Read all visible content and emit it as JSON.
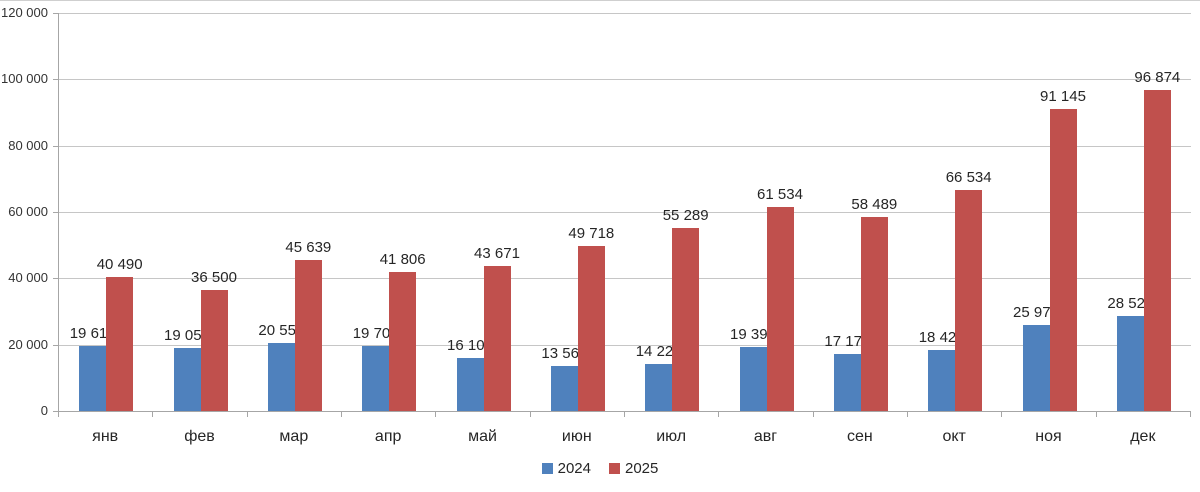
{
  "chart_data": {
    "type": "bar",
    "title": "",
    "xlabel": "",
    "ylabel": "",
    "categories": [
      "янв",
      "фев",
      "мар",
      "апр",
      "май",
      "июн",
      "июл",
      "авг",
      "сен",
      "окт",
      "ноя",
      "дек"
    ],
    "series": [
      {
        "name": "2024",
        "color": "#4F81BD",
        "values": [
          19614,
          19054,
          20558,
          19700,
          16105,
          13560,
          14223,
          19391,
          17177,
          18428,
          25970,
          28520
        ]
      },
      {
        "name": "2025",
        "color": "#C0504D",
        "values": [
          40490,
          36500,
          45639,
          41806,
          43671,
          49718,
          55289,
          61534,
          58489,
          66534,
          91145,
          96874
        ]
      }
    ],
    "ylim": [
      0,
      120000
    ],
    "y_step": 20000,
    "y_tick_labels": [
      "0",
      "20 000",
      "40 000",
      "60 000",
      "80 000",
      "100 000",
      "120 000"
    ],
    "grid": true,
    "data_labels": true,
    "number_format": "space-thousands",
    "legend_position": "bottom",
    "colors": {
      "gridline": "#c6c6c6",
      "axis": "#a6a6a6",
      "label_text": "#262626"
    }
  }
}
